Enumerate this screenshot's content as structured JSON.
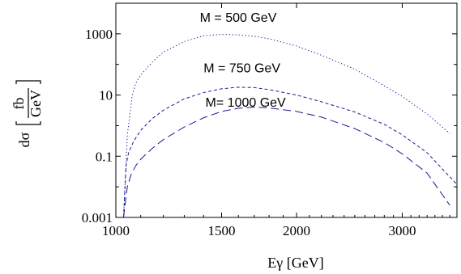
{
  "chart_data": {
    "type": "line",
    "title": "",
    "xlabel": "Eγ  [GeV]",
    "ylabel": {
      "prefix": "dσ",
      "numerator": "fb",
      "denominator": "GeV"
    },
    "x_scale": "log",
    "y_scale": "log",
    "xlim": [
      1000,
      3700
    ],
    "ylim": [
      0.001,
      10000
    ],
    "x_ticks": [
      {
        "value": 1000,
        "label": "1000"
      },
      {
        "value": 1500,
        "label": "1500"
      },
      {
        "value": 2000,
        "label": "2000"
      },
      {
        "value": 3000,
        "label": "3000"
      }
    ],
    "y_ticks": [
      {
        "value": 0.001,
        "label": "0.001"
      },
      {
        "value": 0.1,
        "label": "0.1"
      },
      {
        "value": 10,
        "label": "10"
      },
      {
        "value": 1000,
        "label": "1000"
      }
    ],
    "series": [
      {
        "name": "M = 500 GeV",
        "style": "dotted",
        "color": "#1a1a99",
        "x": [
          1030,
          1045,
          1065,
          1080,
          1100,
          1150,
          1200,
          1300,
          1400,
          1500,
          1600,
          1700,
          1800,
          2000,
          2200,
          2500,
          2800,
          3000,
          3300,
          3600
        ],
        "y": [
          0.001,
          0.5,
          10,
          25,
          45,
          120,
          250,
          560,
          860,
          960,
          930,
          830,
          690,
          400,
          200,
          70,
          20,
          9,
          2.4,
          0.55
        ]
      },
      {
        "name": "M = 750 GeV",
        "style": "dashed",
        "color": "#1a1a99",
        "x": [
          1030,
          1040,
          1050,
          1070,
          1100,
          1150,
          1200,
          1300,
          1400,
          1500,
          1600,
          1700,
          1800,
          2000,
          2200,
          2500,
          2800,
          3000,
          3300,
          3700
        ],
        "y": [
          0.001,
          0.05,
          0.13,
          0.3,
          0.7,
          1.7,
          3.2,
          7.5,
          12,
          16,
          18,
          17.5,
          15,
          10,
          6,
          2.8,
          1.1,
          0.5,
          0.13,
          0.012
        ]
      },
      {
        "name": "M= 1000 GeV",
        "style": "long-dashed",
        "color": "#1a1a99",
        "x": [
          1030,
          1045,
          1060,
          1080,
          1100,
          1150,
          1200,
          1300,
          1400,
          1500,
          1600,
          1700,
          1800,
          2000,
          2200,
          2500,
          2800,
          3000,
          3300,
          3600
        ],
        "y": [
          0.001,
          0.01,
          0.025,
          0.05,
          0.08,
          0.18,
          0.35,
          0.9,
          1.8,
          2.9,
          3.7,
          4.0,
          3.8,
          2.9,
          1.9,
          0.8,
          0.28,
          0.12,
          0.028,
          0.0025
        ]
      }
    ],
    "annotations": [
      {
        "text": "M = 500 GeV",
        "x": 1380,
        "y": 2500
      },
      {
        "text": "M = 750 GeV",
        "x": 1400,
        "y": 55
      },
      {
        "text": "M= 1000 GeV",
        "x": 1410,
        "y": 4.2
      }
    ]
  }
}
